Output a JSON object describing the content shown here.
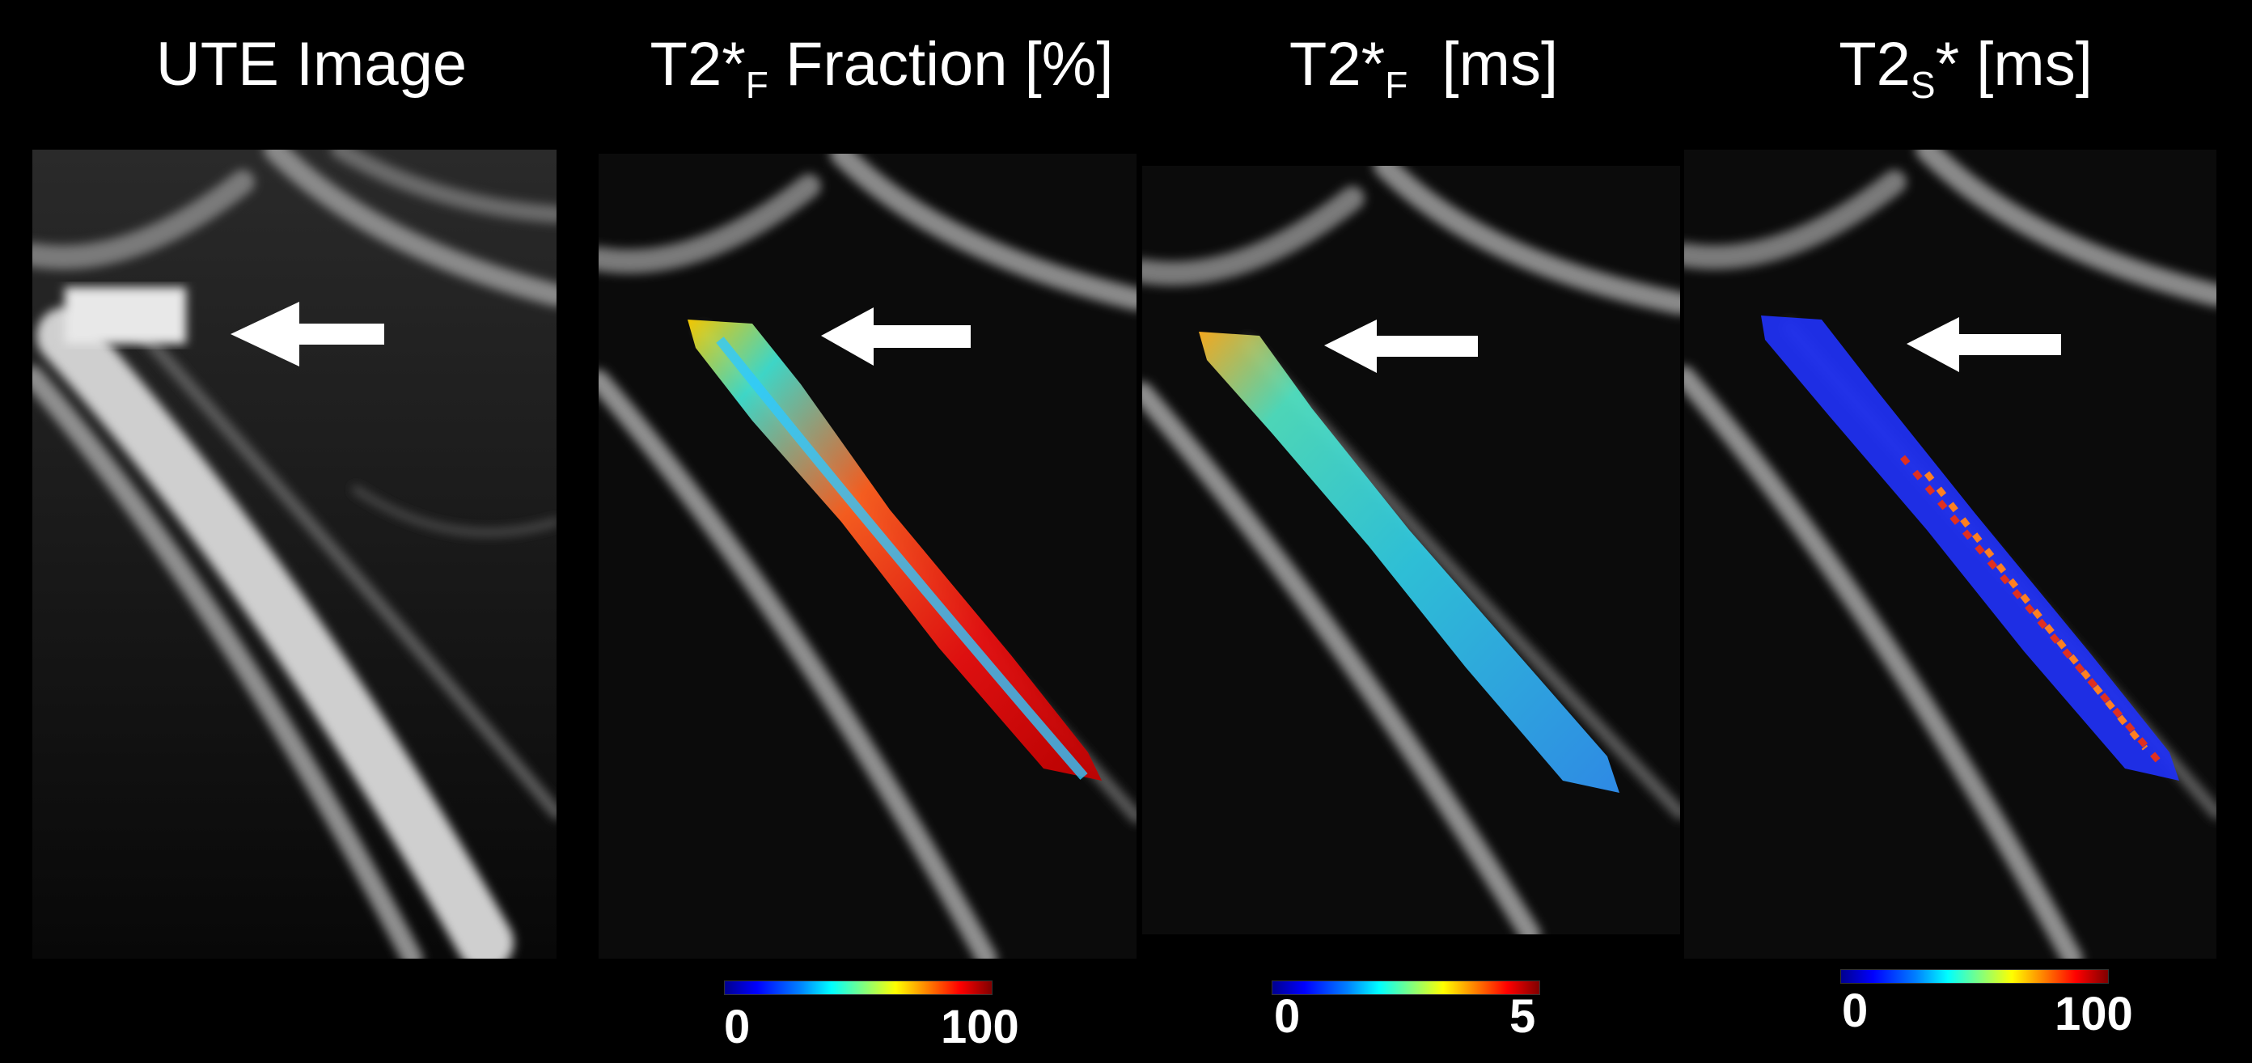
{
  "titles": {
    "ute": "UTE Image",
    "fraction": {
      "main": "T2*",
      "sub": "F",
      "tail": " Fraction [%]"
    },
    "t2f": {
      "main": "T2*",
      "sub": "F",
      "tail": "  [ms]"
    },
    "t2s": {
      "main": "T2",
      "sub": "S",
      "tail": "* [ms]"
    }
  },
  "colorbars": {
    "fraction": {
      "min": "0",
      "max": "100"
    },
    "t2f": {
      "min": "0",
      "max": "5"
    },
    "t2s": {
      "min": "0",
      "max": "100"
    }
  },
  "colors": {
    "background": "#000000",
    "arrow": "#ffffff",
    "colormap": "jet"
  }
}
